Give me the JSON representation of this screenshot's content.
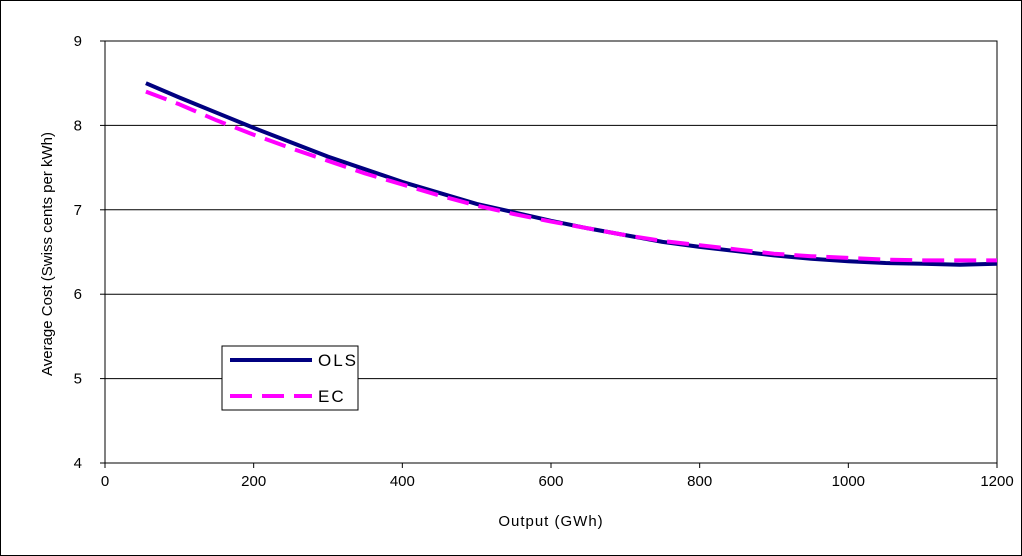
{
  "chart_data": {
    "type": "line",
    "title": "",
    "xlabel": "Output (GWh)",
    "ylabel": "Average Cost (Swiss cents per kWh)",
    "xlim": [
      0,
      1200
    ],
    "ylim": [
      4,
      9
    ],
    "xticks": [
      0,
      200,
      400,
      600,
      800,
      1000,
      1200
    ],
    "yticks": [
      4,
      5,
      6,
      7,
      8,
      9
    ],
    "grid": "horizontal",
    "legend_position": "lower-left",
    "series": [
      {
        "name": "OLS",
        "color": "#000080",
        "style": "solid",
        "x": [
          55,
          100,
          150,
          200,
          250,
          300,
          350,
          400,
          450,
          500,
          550,
          600,
          650,
          700,
          750,
          800,
          850,
          900,
          950,
          1000,
          1050,
          1100,
          1150,
          1200
        ],
        "y": [
          8.5,
          8.33,
          8.15,
          7.97,
          7.8,
          7.63,
          7.48,
          7.33,
          7.2,
          7.07,
          6.97,
          6.87,
          6.78,
          6.7,
          6.62,
          6.56,
          6.51,
          6.46,
          6.42,
          6.39,
          6.37,
          6.36,
          6.35,
          6.36
        ]
      },
      {
        "name": "EC",
        "color": "#FF00FF",
        "style": "dashed",
        "x": [
          55,
          100,
          150,
          200,
          250,
          300,
          350,
          400,
          450,
          500,
          550,
          600,
          650,
          700,
          750,
          800,
          850,
          900,
          950,
          1000,
          1050,
          1100,
          1150,
          1200
        ],
        "y": [
          8.4,
          8.25,
          8.06,
          7.89,
          7.73,
          7.58,
          7.43,
          7.3,
          7.17,
          7.05,
          6.95,
          6.86,
          6.78,
          6.7,
          6.63,
          6.58,
          6.53,
          6.48,
          6.45,
          6.43,
          6.41,
          6.4,
          6.4,
          6.4
        ]
      }
    ]
  }
}
